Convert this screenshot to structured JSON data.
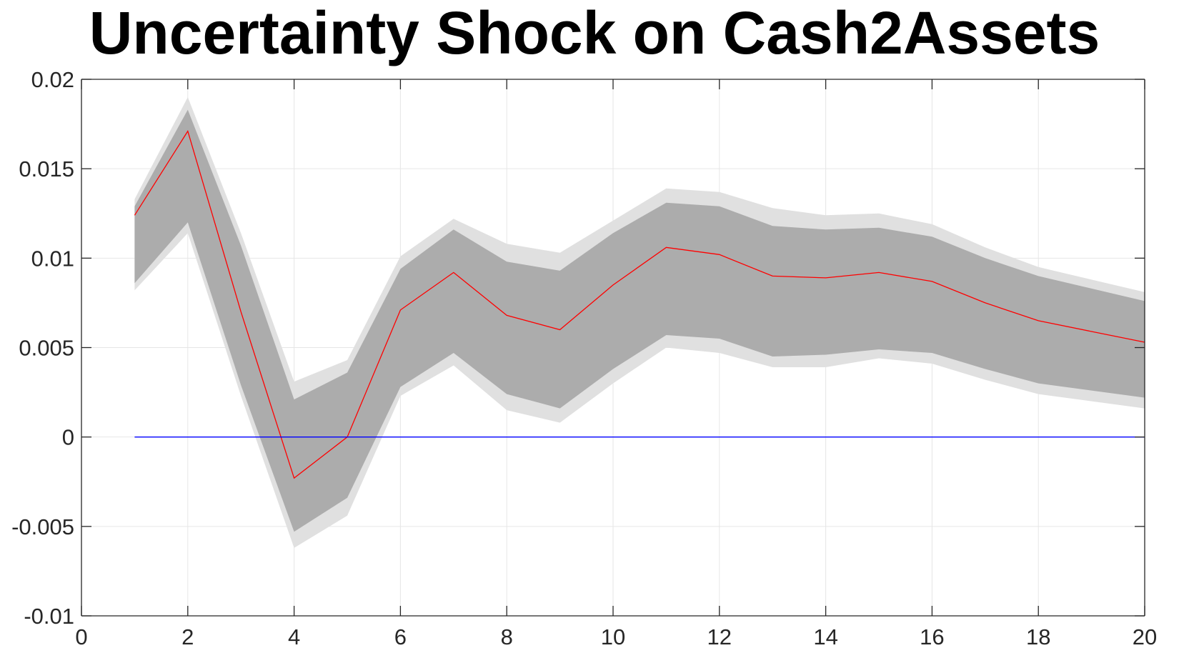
{
  "chart_data": {
    "type": "line",
    "title": "Uncertainty Shock on Cash2Assets",
    "xlabel": "",
    "ylabel": "",
    "xlim": [
      0,
      20
    ],
    "ylim": [
      -0.01,
      0.02
    ],
    "grid": true,
    "x": [
      1,
      2,
      3,
      4,
      5,
      6,
      7,
      8,
      9,
      10,
      11,
      12,
      13,
      14,
      15,
      16,
      17,
      18,
      19,
      20
    ],
    "x_ticks": [
      "0",
      "2",
      "4",
      "6",
      "8",
      "10",
      "12",
      "14",
      "16",
      "18",
      "20"
    ],
    "y_ticks": [
      "-0.01",
      "-0.005",
      "0",
      "0.005",
      "0.01",
      "0.015",
      "0.02"
    ],
    "series": [
      {
        "role": "response",
        "values": [
          0.0124,
          0.0171,
          0.007,
          -0.0023,
          0.0,
          0.0071,
          0.0092,
          0.0068,
          0.006,
          0.0085,
          0.0106,
          0.0102,
          0.009,
          0.0089,
          0.0092,
          0.0087,
          0.0075,
          0.0065,
          0.0059,
          0.0053
        ]
      },
      {
        "role": "zero-line",
        "values": [
          0,
          0,
          0,
          0,
          0,
          0,
          0,
          0,
          0,
          0,
          0,
          0,
          0,
          0,
          0,
          0,
          0,
          0,
          0,
          0
        ]
      }
    ],
    "bands": [
      {
        "role": "outer",
        "lower": [
          0.0082,
          0.0114,
          0.0023,
          -0.0062,
          -0.0044,
          0.0023,
          0.004,
          0.0015,
          0.0008,
          0.003,
          0.005,
          0.0047,
          0.0039,
          0.0039,
          0.0044,
          0.0041,
          0.0032,
          0.0024,
          0.002,
          0.0016
        ],
        "upper": [
          0.0133,
          0.019,
          0.0114,
          0.0031,
          0.0043,
          0.0101,
          0.0122,
          0.0108,
          0.0103,
          0.0121,
          0.0139,
          0.0137,
          0.0128,
          0.0124,
          0.0125,
          0.0119,
          0.0106,
          0.0095,
          0.0088,
          0.0081
        ]
      },
      {
        "role": "inner",
        "lower": [
          0.0086,
          0.012,
          0.0029,
          -0.0053,
          -0.0034,
          0.0028,
          0.0047,
          0.0024,
          0.0016,
          0.0038,
          0.0057,
          0.0055,
          0.0045,
          0.0046,
          0.0049,
          0.0047,
          0.0038,
          0.003,
          0.0026,
          0.0022
        ],
        "upper": [
          0.0129,
          0.0183,
          0.0107,
          0.0021,
          0.0036,
          0.0094,
          0.0116,
          0.0098,
          0.0093,
          0.0114,
          0.0131,
          0.0129,
          0.0118,
          0.0116,
          0.0117,
          0.0112,
          0.01,
          0.009,
          0.0083,
          0.0076
        ]
      }
    ],
    "colors": {
      "response": "#ff0000",
      "zero_line": "#0000ff",
      "outer_band": "#e0e0e0",
      "inner_band": "#acacac",
      "grid": "#e6e6e6",
      "axis": "#262626"
    }
  }
}
